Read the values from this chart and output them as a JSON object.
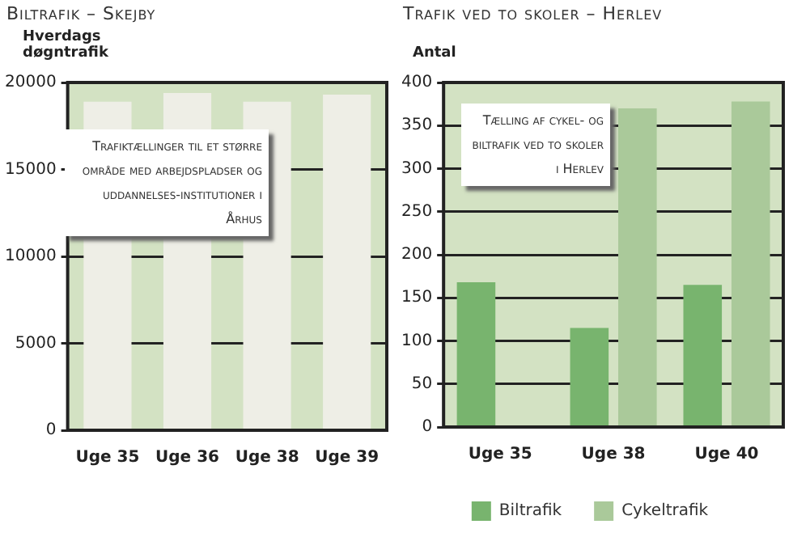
{
  "chart_data": [
    {
      "type": "bar",
      "title": "Biltrafik – Skejby",
      "ylabel": "Hverdags døgntrafik",
      "categories": [
        "Uge 35",
        "Uge 36",
        "Uge 38",
        "Uge 39"
      ],
      "series": [
        {
          "color": "#eeeee6",
          "values": [
            18900,
            19400,
            18900,
            19300
          ]
        }
      ],
      "ylim": [
        0,
        20000
      ],
      "yticks": [
        0,
        5000,
        10000,
        15000,
        20000
      ],
      "grid": "y",
      "legend": false,
      "bands": [
        {
          "axis": "y",
          "from": 0,
          "to": 20000,
          "color": "#d3e2c3"
        }
      ],
      "annotations": [
        "Trafiktællinger til et større område med arbejdspladser og uddannelses-institutioner i Århus"
      ]
    },
    {
      "type": "bar",
      "title": "Trafik ved to skoler – Herlev",
      "ylabel": "Antal",
      "categories": [
        "Uge 35",
        "Uge 38",
        "Uge 40"
      ],
      "series": [
        {
          "name": "Biltrafik",
          "color": "#78b46e",
          "values": [
            168,
            115,
            165
          ]
        },
        {
          "name": "Cykeltrafik",
          "color": "#aac99a",
          "values": [
            null,
            370,
            378
          ]
        }
      ],
      "ylim": [
        0,
        400
      ],
      "yticks": [
        0,
        50,
        100,
        150,
        200,
        250,
        300,
        350,
        400
      ],
      "grid": "y",
      "legend": "bottom",
      "bands": [
        {
          "axis": "y",
          "from": 0,
          "to": 400,
          "color": "#d3e2c3"
        }
      ],
      "annotations": [
        "Tælling af cykel- og biltrafik ved to skoler i Herlev"
      ]
    }
  ]
}
